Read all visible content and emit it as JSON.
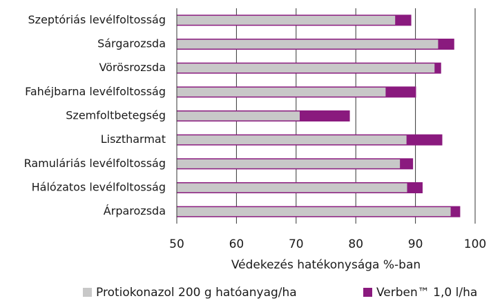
{
  "chart_data": {
    "type": "bar",
    "orientation": "horizontal",
    "overlap": true,
    "x_label": "Védekezés hatékonysága %-ban",
    "categories": [
      "Szeptóriás levélfoltosság",
      "Sárgarozsda",
      "Vörösrozsda",
      "Fahéjbarna levélfoltosság",
      "Szemfoltbetegség",
      "Lisztharmat",
      "Ramuláriás levélfoltosság",
      "Hálózatos levélfoltosság",
      "Árparozsda"
    ],
    "series": [
      {
        "name": "Protiokonazol 200 g hatóanyag/ha",
        "color": "#c8c8c8",
        "values": [
          86.6,
          93.8,
          93.2,
          85,
          70.6,
          88.5,
          87.4,
          88.6,
          95.9
        ]
      },
      {
        "name": "Verben™ 1,0 l/ha",
        "color": "#8a1a7e",
        "values": [
          89.3,
          96.5,
          94.3,
          90.1,
          79,
          94.5,
          89.6,
          91.2,
          97.5
        ]
      }
    ],
    "xlim": [
      50,
      100
    ],
    "xticks": [
      50,
      60,
      70,
      80,
      90,
      100
    ],
    "grid": true
  }
}
